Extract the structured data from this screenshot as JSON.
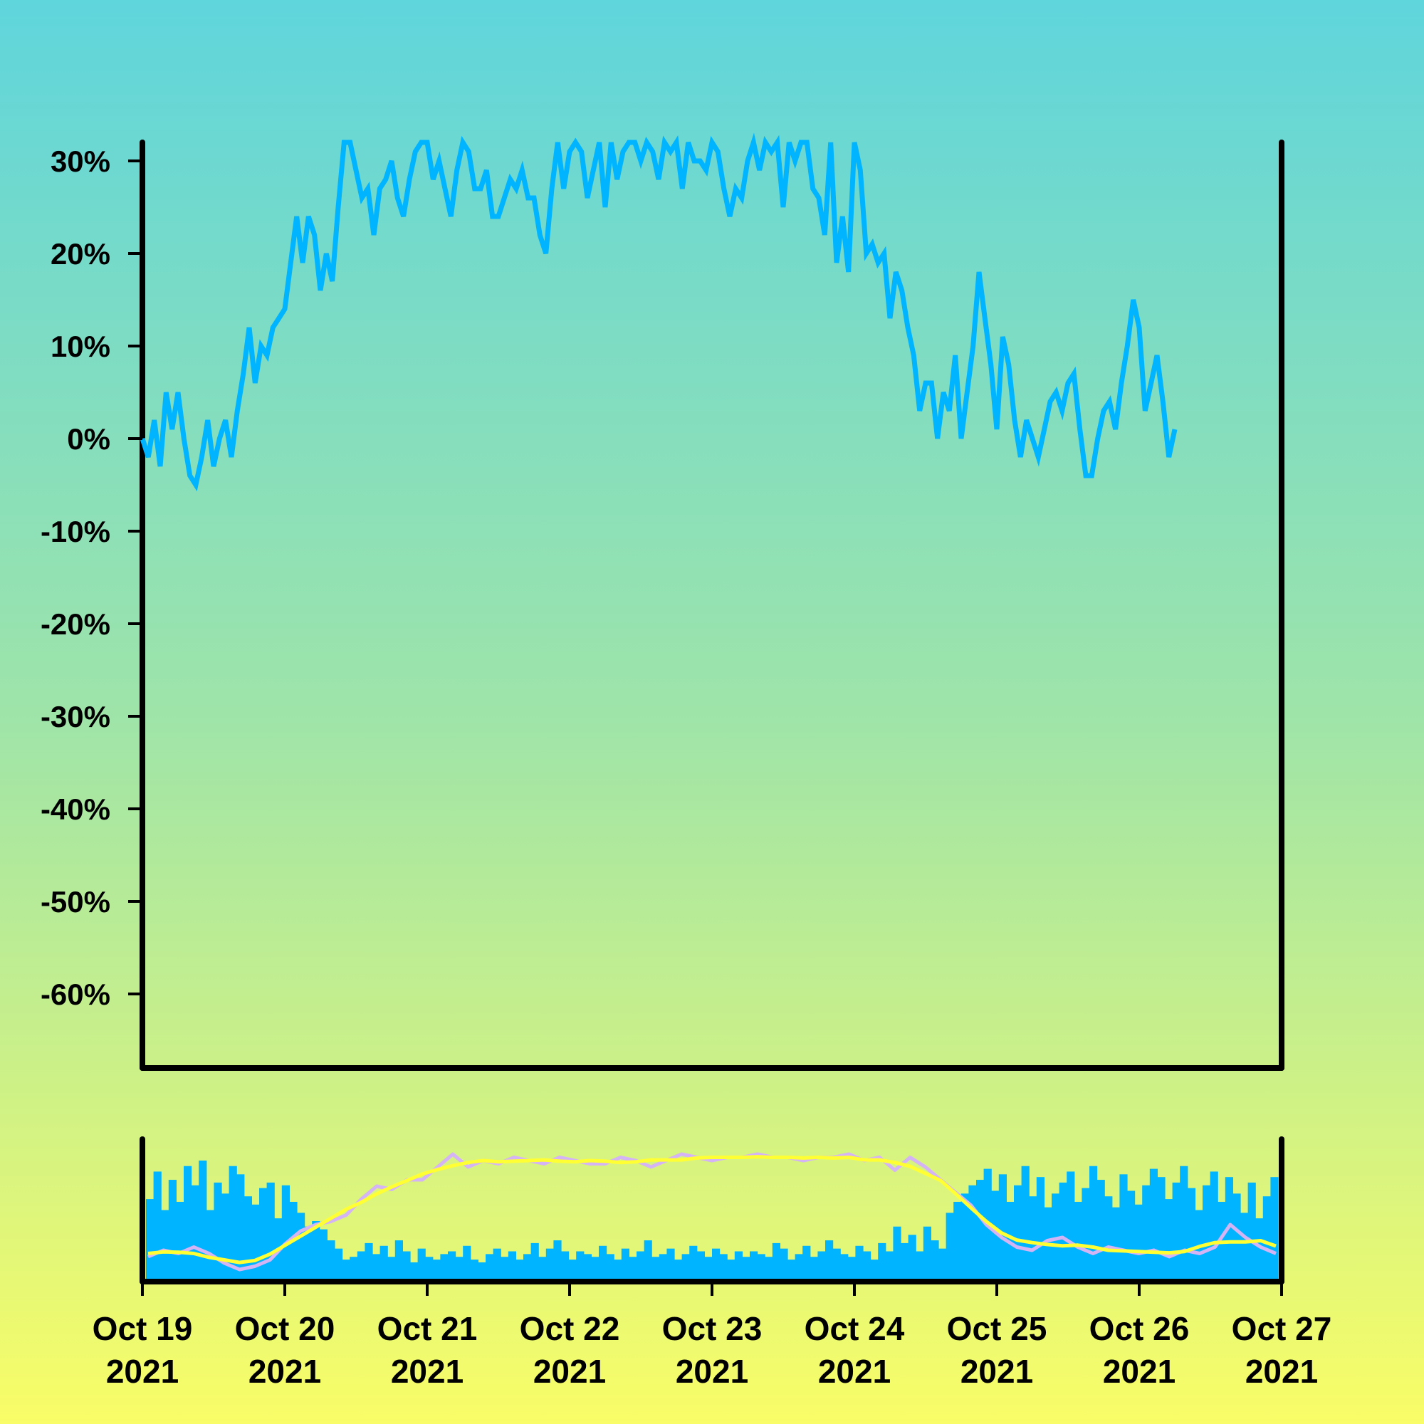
{
  "chart_data": {
    "type": "line",
    "title": "",
    "xlabel": "",
    "ylabel": "",
    "x_range": [
      "2021-10-19",
      "2021-10-27"
    ],
    "ylim": [
      -68,
      32
    ],
    "y_unit": "%",
    "grid": false,
    "legend": "none",
    "y_ticks": [
      30,
      20,
      10,
      0,
      -10,
      -20,
      -30,
      -40,
      -50,
      -60
    ],
    "y_tick_labels": [
      "30%",
      "20%",
      "10%",
      "0%",
      "-10%",
      "-20%",
      "-30%",
      "-40%",
      "-50%",
      "-60%"
    ],
    "x_ticks": [
      {
        "date": "2021-10-19",
        "line1": "Oct 19",
        "line2": "2021"
      },
      {
        "date": "2021-10-20",
        "line1": "Oct 20",
        "line2": "2021"
      },
      {
        "date": "2021-10-21",
        "line1": "Oct 21",
        "line2": "2021"
      },
      {
        "date": "2021-10-22",
        "line1": "Oct 22",
        "line2": "2021"
      },
      {
        "date": "2021-10-23",
        "line1": "Oct 23",
        "line2": "2021"
      },
      {
        "date": "2021-10-24",
        "line1": "Oct 24",
        "line2": "2021"
      },
      {
        "date": "2021-10-25",
        "line1": "Oct 25",
        "line2": "2021"
      },
      {
        "date": "2021-10-26",
        "line1": "Oct 26",
        "line2": "2021"
      },
      {
        "date": "2021-10-27",
        "line1": "Oct 27",
        "line2": "2021"
      }
    ],
    "series": [
      {
        "color": "#00b4ff",
        "points": [
          [
            "2021-10-19T00:00",
            0
          ],
          [
            "2021-10-19T01:00",
            -2
          ],
          [
            "2021-10-19T02:00",
            2
          ],
          [
            "2021-10-19T03:00",
            -3
          ],
          [
            "2021-10-19T04:00",
            5
          ],
          [
            "2021-10-19T05:00",
            1
          ],
          [
            "2021-10-19T06:00",
            5
          ],
          [
            "2021-10-19T07:00",
            0
          ],
          [
            "2021-10-19T08:00",
            -4
          ],
          [
            "2021-10-19T09:00",
            -5
          ],
          [
            "2021-10-19T10:00",
            -2
          ],
          [
            "2021-10-19T11:00",
            2
          ],
          [
            "2021-10-19T12:00",
            -3
          ],
          [
            "2021-10-19T13:00",
            0
          ],
          [
            "2021-10-19T14:00",
            2
          ],
          [
            "2021-10-19T15:00",
            -2
          ],
          [
            "2021-10-19T16:00",
            3
          ],
          [
            "2021-10-19T17:00",
            7
          ],
          [
            "2021-10-19T18:00",
            12
          ],
          [
            "2021-10-19T19:00",
            6
          ],
          [
            "2021-10-19T20:00",
            10
          ],
          [
            "2021-10-19T21:00",
            9
          ],
          [
            "2021-10-19T22:00",
            12
          ],
          [
            "2021-10-19T23:00",
            13
          ],
          [
            "2021-10-20T00:00",
            14
          ],
          [
            "2021-10-20T01:00",
            19
          ],
          [
            "2021-10-20T02:00",
            24
          ],
          [
            "2021-10-20T03:00",
            19
          ],
          [
            "2021-10-20T04:00",
            24
          ],
          [
            "2021-10-20T05:00",
            22
          ],
          [
            "2021-10-20T06:00",
            16
          ],
          [
            "2021-10-20T07:00",
            20
          ],
          [
            "2021-10-20T08:00",
            17
          ],
          [
            "2021-10-20T09:00",
            25
          ],
          [
            "2021-10-20T10:00",
            32
          ],
          [
            "2021-10-20T11:00",
            32
          ],
          [
            "2021-10-20T12:00",
            29
          ],
          [
            "2021-10-20T13:00",
            26
          ],
          [
            "2021-10-20T14:00",
            27
          ],
          [
            "2021-10-20T15:00",
            22
          ],
          [
            "2021-10-20T16:00",
            27
          ],
          [
            "2021-10-20T17:00",
            28
          ],
          [
            "2021-10-20T18:00",
            30
          ],
          [
            "2021-10-20T19:00",
            26
          ],
          [
            "2021-10-20T20:00",
            24
          ],
          [
            "2021-10-20T21:00",
            28
          ],
          [
            "2021-10-20T22:00",
            31
          ],
          [
            "2021-10-20T23:00",
            32
          ],
          [
            "2021-10-21T00:00",
            32
          ],
          [
            "2021-10-21T01:00",
            28
          ],
          [
            "2021-10-21T02:00",
            30
          ],
          [
            "2021-10-21T03:00",
            27
          ],
          [
            "2021-10-21T04:00",
            24
          ],
          [
            "2021-10-21T05:00",
            29
          ],
          [
            "2021-10-21T06:00",
            32
          ],
          [
            "2021-10-21T07:00",
            31
          ],
          [
            "2021-10-21T08:00",
            27
          ],
          [
            "2021-10-21T09:00",
            27
          ],
          [
            "2021-10-21T10:00",
            29
          ],
          [
            "2021-10-21T11:00",
            24
          ],
          [
            "2021-10-21T12:00",
            24
          ],
          [
            "2021-10-21T13:00",
            26
          ],
          [
            "2021-10-21T14:00",
            28
          ],
          [
            "2021-10-21T15:00",
            27
          ],
          [
            "2021-10-21T16:00",
            29
          ],
          [
            "2021-10-21T17:00",
            26
          ],
          [
            "2021-10-21T18:00",
            26
          ],
          [
            "2021-10-21T19:00",
            22
          ],
          [
            "2021-10-21T20:00",
            20
          ],
          [
            "2021-10-21T21:00",
            27
          ],
          [
            "2021-10-21T22:00",
            32
          ],
          [
            "2021-10-21T23:00",
            27
          ],
          [
            "2021-10-22T00:00",
            31
          ],
          [
            "2021-10-22T01:00",
            32
          ],
          [
            "2021-10-22T02:00",
            31
          ],
          [
            "2021-10-22T03:00",
            26
          ],
          [
            "2021-10-22T04:00",
            29
          ],
          [
            "2021-10-22T05:00",
            32
          ],
          [
            "2021-10-22T06:00",
            25
          ],
          [
            "2021-10-22T07:00",
            32
          ],
          [
            "2021-10-22T08:00",
            28
          ],
          [
            "2021-10-22T09:00",
            31
          ],
          [
            "2021-10-22T10:00",
            32
          ],
          [
            "2021-10-22T11:00",
            32
          ],
          [
            "2021-10-22T12:00",
            30
          ],
          [
            "2021-10-22T13:00",
            32
          ],
          [
            "2021-10-22T14:00",
            31
          ],
          [
            "2021-10-22T15:00",
            28
          ],
          [
            "2021-10-22T16:00",
            32
          ],
          [
            "2021-10-22T17:00",
            31
          ],
          [
            "2021-10-22T18:00",
            32
          ],
          [
            "2021-10-22T19:00",
            27
          ],
          [
            "2021-10-22T20:00",
            32
          ],
          [
            "2021-10-22T21:00",
            30
          ],
          [
            "2021-10-22T22:00",
            30
          ],
          [
            "2021-10-22T23:00",
            29
          ],
          [
            "2021-10-23T00:00",
            32
          ],
          [
            "2021-10-23T01:00",
            31
          ],
          [
            "2021-10-23T02:00",
            27
          ],
          [
            "2021-10-23T03:00",
            24
          ],
          [
            "2021-10-23T04:00",
            27
          ],
          [
            "2021-10-23T05:00",
            26
          ],
          [
            "2021-10-23T06:00",
            30
          ],
          [
            "2021-10-23T07:00",
            32
          ],
          [
            "2021-10-23T08:00",
            29
          ],
          [
            "2021-10-23T09:00",
            32
          ],
          [
            "2021-10-23T10:00",
            31
          ],
          [
            "2021-10-23T11:00",
            32
          ],
          [
            "2021-10-23T12:00",
            25
          ],
          [
            "2021-10-23T13:00",
            32
          ],
          [
            "2021-10-23T14:00",
            30
          ],
          [
            "2021-10-23T15:00",
            32
          ],
          [
            "2021-10-23T16:00",
            32
          ],
          [
            "2021-10-23T17:00",
            27
          ],
          [
            "2021-10-23T18:00",
            26
          ],
          [
            "2021-10-23T19:00",
            22
          ],
          [
            "2021-10-23T20:00",
            32
          ],
          [
            "2021-10-23T21:00",
            19
          ],
          [
            "2021-10-23T22:00",
            24
          ],
          [
            "2021-10-23T23:00",
            18
          ],
          [
            "2021-10-24T00:00",
            32
          ],
          [
            "2021-10-24T01:00",
            29
          ],
          [
            "2021-10-24T02:00",
            20
          ],
          [
            "2021-10-24T03:00",
            21
          ],
          [
            "2021-10-24T04:00",
            19
          ],
          [
            "2021-10-24T05:00",
            20
          ],
          [
            "2021-10-24T06:00",
            13
          ],
          [
            "2021-10-24T07:00",
            18
          ],
          [
            "2021-10-24T08:00",
            16
          ],
          [
            "2021-10-24T09:00",
            12
          ],
          [
            "2021-10-24T10:00",
            9
          ],
          [
            "2021-10-24T11:00",
            3
          ],
          [
            "2021-10-24T12:00",
            6
          ],
          [
            "2021-10-24T13:00",
            6
          ],
          [
            "2021-10-24T14:00",
            0
          ],
          [
            "2021-10-24T15:00",
            5
          ],
          [
            "2021-10-24T16:00",
            3
          ],
          [
            "2021-10-24T17:00",
            9
          ],
          [
            "2021-10-24T18:00",
            0
          ],
          [
            "2021-10-24T19:00",
            5
          ],
          [
            "2021-10-24T20:00",
            10
          ],
          [
            "2021-10-24T21:00",
            18
          ],
          [
            "2021-10-24T22:00",
            13
          ],
          [
            "2021-10-24T23:00",
            8
          ],
          [
            "2021-10-25T00:00",
            1
          ],
          [
            "2021-10-25T01:00",
            11
          ],
          [
            "2021-10-25T02:00",
            8
          ],
          [
            "2021-10-25T03:00",
            2
          ],
          [
            "2021-10-25T04:00",
            -2
          ],
          [
            "2021-10-25T05:00",
            2
          ],
          [
            "2021-10-25T06:00",
            0
          ],
          [
            "2021-10-25T07:00",
            -2
          ],
          [
            "2021-10-25T08:00",
            1
          ],
          [
            "2021-10-25T09:00",
            4
          ],
          [
            "2021-10-25T10:00",
            5
          ],
          [
            "2021-10-25T11:00",
            3
          ],
          [
            "2021-10-25T12:00",
            6
          ],
          [
            "2021-10-25T13:00",
            7
          ],
          [
            "2021-10-25T14:00",
            1
          ],
          [
            "2021-10-25T15:00",
            -4
          ],
          [
            "2021-10-25T16:00",
            -4
          ],
          [
            "2021-10-25T17:00",
            0
          ],
          [
            "2021-10-25T18:00",
            3
          ],
          [
            "2021-10-25T19:00",
            4
          ],
          [
            "2021-10-25T20:00",
            1
          ],
          [
            "2021-10-25T21:00",
            6
          ],
          [
            "2021-10-25T22:00",
            10
          ],
          [
            "2021-10-25T23:00",
            15
          ],
          [
            "2021-10-26T00:00",
            12
          ],
          [
            "2021-10-26T01:00",
            3
          ],
          [
            "2021-10-26T02:00",
            6
          ],
          [
            "2021-10-26T03:00",
            9
          ],
          [
            "2021-10-26T04:00",
            4
          ],
          [
            "2021-10-26T05:00",
            -2
          ],
          [
            "2021-10-26T06:00",
            1
          ]
        ]
      }
    ],
    "navigator": {
      "volume_color": "#00b4ff",
      "line_colors": [
        "#d4b4f4",
        "#ffff33"
      ],
      "volume_values": [
        60,
        80,
        52,
        74,
        58,
        84,
        70,
        88,
        52,
        72,
        64,
        84,
        78,
        62,
        56,
        68,
        72,
        46,
        70,
        58,
        50,
        40,
        44,
        38,
        30,
        24,
        16,
        18,
        22,
        28,
        20,
        26,
        18,
        30,
        22,
        14,
        24,
        18,
        16,
        20,
        22,
        18,
        26,
        16,
        14,
        20,
        24,
        18,
        22,
        16,
        20,
        28,
        18,
        24,
        30,
        22,
        16,
        22,
        20,
        18,
        26,
        20,
        16,
        24,
        18,
        22,
        30,
        18,
        20,
        24,
        16,
        20,
        26,
        22,
        18,
        24,
        20,
        16,
        22,
        18,
        22,
        20,
        18,
        28,
        24,
        16,
        20,
        26,
        18,
        22,
        30,
        24,
        20,
        18,
        26,
        22,
        16,
        28,
        22,
        40,
        28,
        34,
        22,
        40,
        30,
        24,
        50,
        58,
        64,
        70,
        74,
        82,
        66,
        78,
        58,
        70,
        84,
        62,
        76,
        54,
        64,
        72,
        80,
        58,
        68,
        84,
        74,
        62,
        54,
        78,
        66,
        56,
        70,
        82,
        76,
        60,
        72,
        84,
        68,
        52,
        70,
        80,
        58,
        76,
        64,
        50,
        72,
        46,
        62,
        76
      ],
      "price_values": [
        0,
        2,
        1,
        3,
        1,
        -2,
        -4,
        -3,
        -1,
        4,
        8,
        10,
        11,
        13,
        18,
        22,
        21,
        24,
        24,
        28,
        32,
        28,
        30,
        29,
        31,
        30,
        29,
        31,
        30,
        29,
        29,
        31,
        30,
        28,
        30,
        32,
        31,
        30,
        31,
        31,
        32,
        31,
        31,
        30,
        31,
        31,
        32,
        30,
        31,
        27,
        31,
        28,
        24,
        20,
        16,
        10,
        6,
        3,
        2,
        5,
        6,
        3,
        1,
        3,
        2,
        1,
        2,
        0,
        2,
        1,
        3,
        10,
        6,
        3,
        1
      ]
    }
  }
}
